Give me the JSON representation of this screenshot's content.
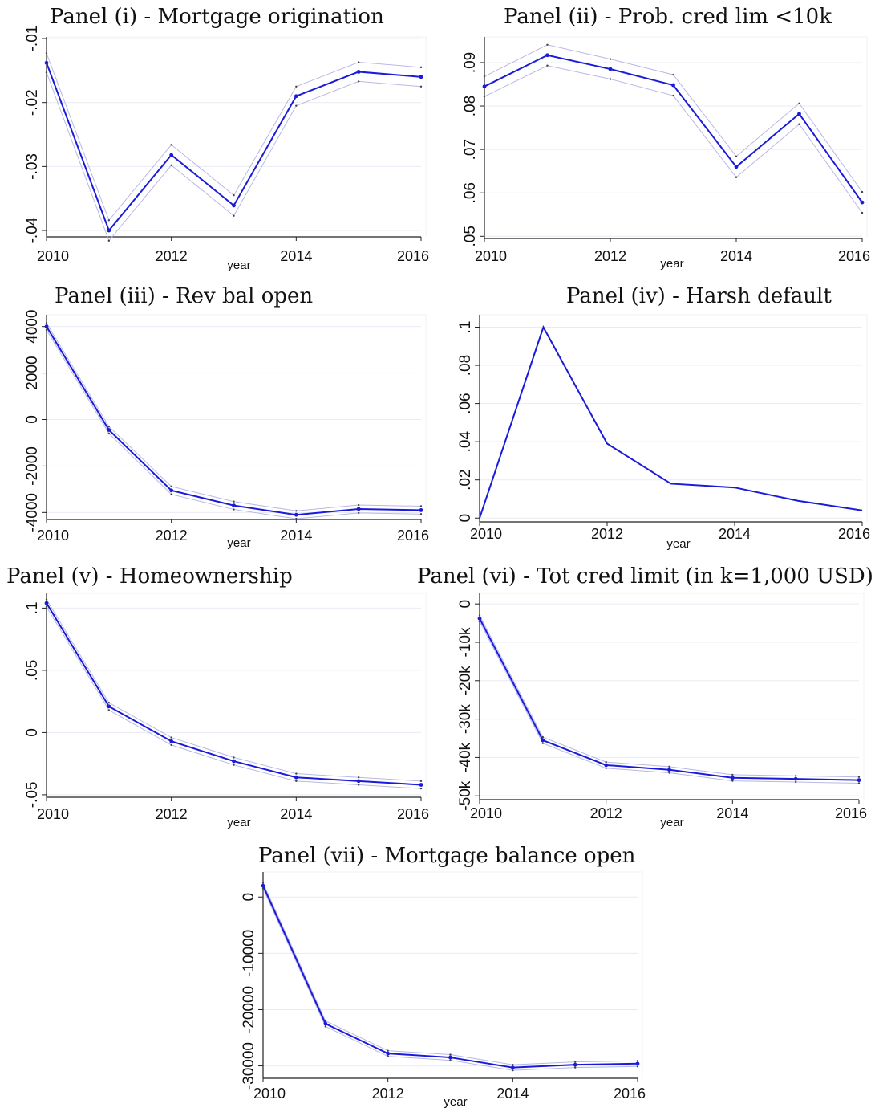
{
  "colors": {
    "main_line": "#1a1adb",
    "ci_line": "#b8b8e6",
    "grid": "#e8ecf2",
    "axis": "#222222"
  },
  "chart_data": [
    {
      "type": "line",
      "title": "Panel (i) - Mortgage origination",
      "xlabel": "year",
      "ylabel": "",
      "xlim": [
        2010,
        2016
      ],
      "ylim": [
        -0.041,
        -0.0105
      ],
      "xticks": [
        "2010",
        "2012",
        "2014",
        "2016"
      ],
      "yticks": [
        {
          "value": -0.01,
          "label": "-.01"
        },
        {
          "value": -0.02,
          "label": "-.02"
        },
        {
          "value": -0.03,
          "label": "-.03"
        },
        {
          "value": -0.04,
          "label": "-.04"
        }
      ],
      "x": [
        2010,
        2011,
        2012,
        2013,
        2014,
        2015,
        2016
      ],
      "series": [
        {
          "values": [
            -0.0138,
            -0.04,
            -0.0282,
            -0.0361,
            -0.019,
            -0.0152,
            -0.016
          ]
        }
      ],
      "ci_upper": [
        -0.0123,
        -0.0384,
        -0.0266,
        -0.0345,
        -0.0175,
        -0.0137,
        -0.0145
      ],
      "ci_lower": [
        -0.0153,
        -0.0416,
        -0.0298,
        -0.0377,
        -0.0205,
        -0.0167,
        -0.0175
      ],
      "grid": true
    },
    {
      "type": "line",
      "title": "Panel (ii) - Prob. cred lim <10k",
      "xlabel": "year",
      "ylabel": "",
      "xlim": [
        2010,
        2016
      ],
      "ylim": [
        0.0495,
        0.0948
      ],
      "xticks": [
        "2010",
        "2012",
        "2014",
        "2016"
      ],
      "yticks": [
        {
          "value": 0.05,
          "label": ".05"
        },
        {
          "value": 0.06,
          "label": ".06"
        },
        {
          "value": 0.07,
          "label": ".07"
        },
        {
          "value": 0.08,
          "label": ".08"
        },
        {
          "value": 0.09,
          "label": ".09"
        }
      ],
      "x": [
        2010,
        2011,
        2012,
        2013,
        2014,
        2015,
        2016
      ],
      "series": [
        {
          "values": [
            0.0845,
            0.0917,
            0.0885,
            0.0848,
            0.066,
            0.0782,
            0.0578
          ]
        }
      ],
      "ci_upper": [
        0.0868,
        0.0941,
        0.0908,
        0.0872,
        0.0684,
        0.0806,
        0.0602
      ],
      "ci_lower": [
        0.0822,
        0.0893,
        0.0862,
        0.0824,
        0.0636,
        0.0758,
        0.0554
      ],
      "grid": true
    },
    {
      "type": "line",
      "title": "Panel (iii) - Rev bal open",
      "xlabel": "year",
      "ylabel": "",
      "xlim": [
        2010,
        2016
      ],
      "ylim": [
        -4300,
        4300
      ],
      "xticks": [
        "2010",
        "2012",
        "2014",
        "2016"
      ],
      "yticks": [
        {
          "value": 4000,
          "label": "4000"
        },
        {
          "value": 2000,
          "label": "2000"
        },
        {
          "value": 0,
          "label": "0"
        },
        {
          "value": -2000,
          "label": "-2000"
        },
        {
          "value": -4000,
          "label": "-4000"
        }
      ],
      "x": [
        2010,
        2011,
        2012,
        2013,
        2014,
        2015,
        2016
      ],
      "series": [
        {
          "values": [
            4000,
            -450,
            -3050,
            -3700,
            -4100,
            -3850,
            -3900
          ]
        }
      ],
      "ci_upper": [
        4150,
        -300,
        -2880,
        -3530,
        -3930,
        -3680,
        -3730
      ],
      "ci_lower": [
        3850,
        -600,
        -3220,
        -3870,
        -4270,
        -4020,
        -4070
      ],
      "grid": true
    },
    {
      "type": "line",
      "title": "Panel (iv) - Harsh default",
      "xlabel": "year",
      "ylabel": "",
      "xlim": [
        2010,
        2016
      ],
      "ylim": [
        -0.002,
        0.104
      ],
      "xticks": [
        "2010",
        "2012",
        "2014",
        "2016"
      ],
      "yticks": [
        {
          "value": 0,
          "label": "0"
        },
        {
          "value": 0.02,
          "label": ".02"
        },
        {
          "value": 0.04,
          "label": ".04"
        },
        {
          "value": 0.06,
          "label": ".06"
        },
        {
          "value": 0.08,
          "label": ".08"
        },
        {
          "value": 0.1,
          "label": ".1"
        }
      ],
      "x": [
        2010,
        2011,
        2012,
        2013,
        2014,
        2015,
        2016
      ],
      "series": [
        {
          "values": [
            0.0,
            0.1,
            0.039,
            0.018,
            0.016,
            0.009,
            0.004
          ]
        }
      ],
      "grid": true
    },
    {
      "type": "line",
      "title": "Panel (v) - Homeownership",
      "xlabel": "year",
      "ylabel": "",
      "xlim": [
        2010,
        2016
      ],
      "ylim": [
        -0.052,
        0.108
      ],
      "xticks": [
        "2010",
        "2012",
        "2014",
        "2016"
      ],
      "yticks": [
        {
          "value": 0.1,
          "label": ".1"
        },
        {
          "value": 0.05,
          "label": ".05"
        },
        {
          "value": 0,
          "label": "0"
        },
        {
          "value": -0.05,
          "label": "-.05"
        }
      ],
      "x": [
        2010,
        2011,
        2012,
        2013,
        2014,
        2015,
        2016
      ],
      "series": [
        {
          "values": [
            0.104,
            0.021,
            -0.007,
            -0.023,
            -0.036,
            -0.039,
            -0.042
          ]
        }
      ],
      "ci_upper": [
        0.107,
        0.024,
        -0.004,
        -0.02,
        -0.033,
        -0.036,
        -0.039
      ],
      "ci_lower": [
        0.101,
        0.018,
        -0.01,
        -0.026,
        -0.039,
        -0.042,
        -0.045
      ],
      "grid": true
    },
    {
      "type": "line",
      "title": "Panel (vi) - Tot cred limit (in k=1,000 USD)",
      "xlabel": "year",
      "ylabel": "",
      "xlim": [
        2010,
        2016
      ],
      "ylim": [
        -51000,
        1500
      ],
      "xticks": [
        "2010",
        "2012",
        "2014",
        "2016"
      ],
      "yticks": [
        {
          "value": 0,
          "label": "0"
        },
        {
          "value": -10000,
          "label": "-10k"
        },
        {
          "value": -20000,
          "label": "-20k"
        },
        {
          "value": -30000,
          "label": "-30k"
        },
        {
          "value": -40000,
          "label": "-40k"
        },
        {
          "value": -50000,
          "label": "-50k"
        }
      ],
      "x": [
        2010,
        2011,
        2012,
        2013,
        2014,
        2015,
        2016
      ],
      "series": [
        {
          "values": [
            -3800,
            -35500,
            -42000,
            -43200,
            -45300,
            -45600,
            -45900
          ]
        }
      ],
      "ci_upper": [
        -3000,
        -34700,
        -41200,
        -42400,
        -44500,
        -44800,
        -45100
      ],
      "ci_lower": [
        -4600,
        -36300,
        -42800,
        -44000,
        -46100,
        -46400,
        -46700
      ],
      "grid": true
    },
    {
      "type": "line",
      "title": "Panel (vii) - Mortgage balance open",
      "xlabel": "year",
      "ylabel": "",
      "xlim": [
        2010,
        2016
      ],
      "ylim": [
        -32200,
        3600
      ],
      "xticks": [
        "2010",
        "2012",
        "2014",
        "2016"
      ],
      "yticks": [
        {
          "value": 0,
          "label": "0"
        },
        {
          "value": -10000,
          "label": "-10000"
        },
        {
          "value": -20000,
          "label": "-20000"
        },
        {
          "value": -30000,
          "label": "-30000"
        }
      ],
      "x": [
        2010,
        2011,
        2012,
        2013,
        2014,
        2015,
        2016
      ],
      "series": [
        {
          "values": [
            2000,
            -22500,
            -27800,
            -28500,
            -30300,
            -29800,
            -29600
          ]
        }
      ],
      "ci_upper": [
        2500,
        -22000,
        -27300,
        -28000,
        -29800,
        -29300,
        -29100
      ],
      "ci_lower": [
        1500,
        -23000,
        -28300,
        -29000,
        -30800,
        -30300,
        -30100
      ],
      "grid": true
    }
  ]
}
